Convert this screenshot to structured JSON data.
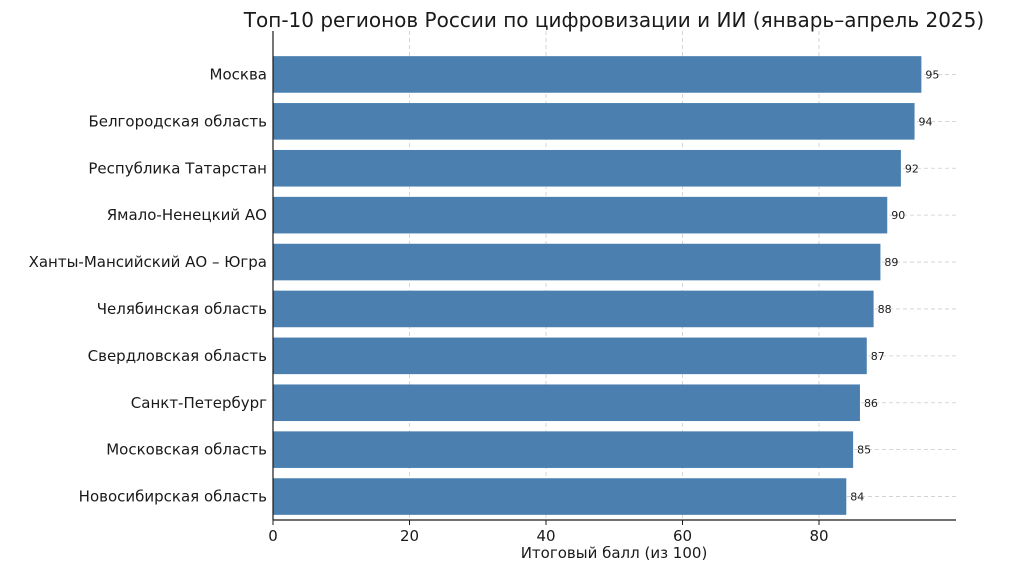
{
  "chart_data": {
    "type": "bar",
    "orientation": "horizontal",
    "title": "Топ-10 регионов России по цифровизации и ИИ (январь–апрель 2025)",
    "xlabel": "Итоговый балл (из 100)",
    "ylabel": "",
    "categories": [
      "Москва",
      "Белгородская область",
      "Республика Татарстан",
      "Ямало-Ненецкий АО",
      "Ханты-Мансийский АО – Югра",
      "Челябинская область",
      "Свердловская область",
      "Санкт-Петербург",
      "Московская область",
      "Новосибирская область"
    ],
    "values": [
      95,
      94,
      92,
      90,
      89,
      88,
      87,
      86,
      85,
      84
    ],
    "value_labels": [
      "95",
      "94",
      "92",
      "90",
      "89",
      "88",
      "87",
      "86",
      "85",
      "84"
    ],
    "xlim": [
      0,
      100
    ],
    "xticks": [
      0,
      20,
      40,
      60,
      80
    ],
    "xtick_labels": [
      "0",
      "20",
      "40",
      "60",
      "80"
    ],
    "grid": true,
    "grid_axis": "both",
    "grid_style": "dashed",
    "legend": false,
    "colors": {
      "bar": "#4a7fb0",
      "grid": "#cccccc",
      "axis": "#1a1a1a",
      "text": "#1a1a1a"
    }
  }
}
